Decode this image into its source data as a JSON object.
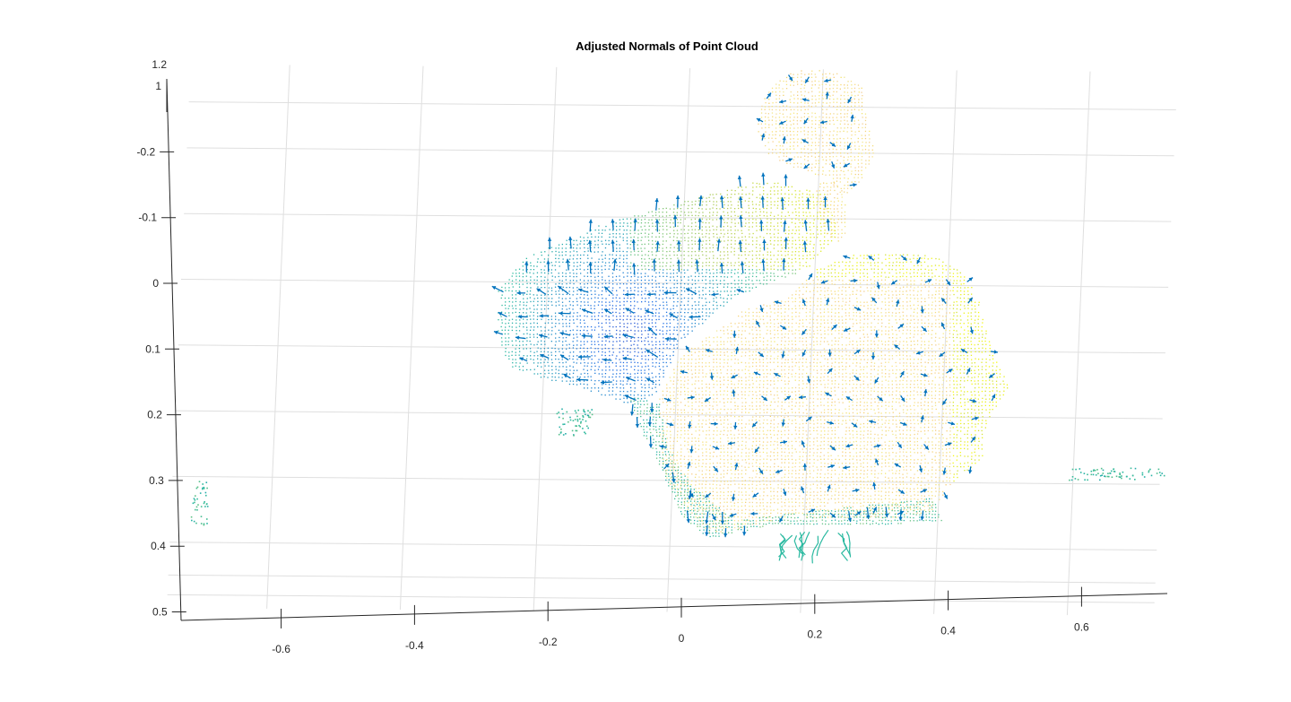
{
  "chart_data": {
    "type": "scatter",
    "title": "Adjusted Normals of Point Cloud",
    "xlabel": "",
    "ylabel": "",
    "x_ticks": [
      "-0.6",
      "-0.4",
      "-0.2",
      "0",
      "0.2",
      "0.4",
      "0.6"
    ],
    "y_ticks": [
      "-0.2",
      "-0.1",
      "0",
      "0.1",
      "0.2",
      "0.3",
      "0.4",
      "0.5"
    ],
    "z_ticks": [
      "1",
      "1.2"
    ],
    "xlim": [
      -0.75,
      0.73
    ],
    "ylim": [
      -0.3,
      0.5
    ],
    "grid": true,
    "legend": "none",
    "view": "3d-tilted",
    "series": [
      {
        "kind": "point-cloud",
        "colormap": "parula",
        "regions": [
          {
            "part": "left-wing",
            "x": [
              -0.28,
              -0.02
            ],
            "y": [
              -0.04,
              0.16
            ]
          },
          {
            "part": "upper-body",
            "x": [
              -0.1,
              0.22
            ],
            "y": [
              -0.16,
              0.06
            ]
          },
          {
            "part": "head",
            "x": [
              0.12,
              0.3
            ],
            "y": [
              -0.34,
              -0.16
            ]
          },
          {
            "part": "right-body",
            "x": [
              0.0,
              0.5
            ],
            "y": [
              0.0,
              0.35
            ]
          },
          {
            "part": "right-stray-cluster",
            "x": [
              0.58,
              0.72
            ],
            "y": [
              0.28,
              0.3
            ]
          },
          {
            "part": "left-stray-cluster",
            "x": [
              -0.74,
              -0.72
            ],
            "y": [
              0.3,
              0.45
            ]
          },
          {
            "part": "base-roots",
            "x": [
              0.12,
              0.25
            ],
            "y": [
              0.37,
              0.42
            ]
          }
        ]
      },
      {
        "kind": "normal-vectors",
        "color": "#0072BD"
      }
    ]
  },
  "colors": {
    "axis": "#262626",
    "grid": "#dfdfdf",
    "arrow": "#0072BD",
    "parula_low": "#3E26A8",
    "parula_mid": "#2AB9A0",
    "parula_high": "#F9FB0E"
  }
}
